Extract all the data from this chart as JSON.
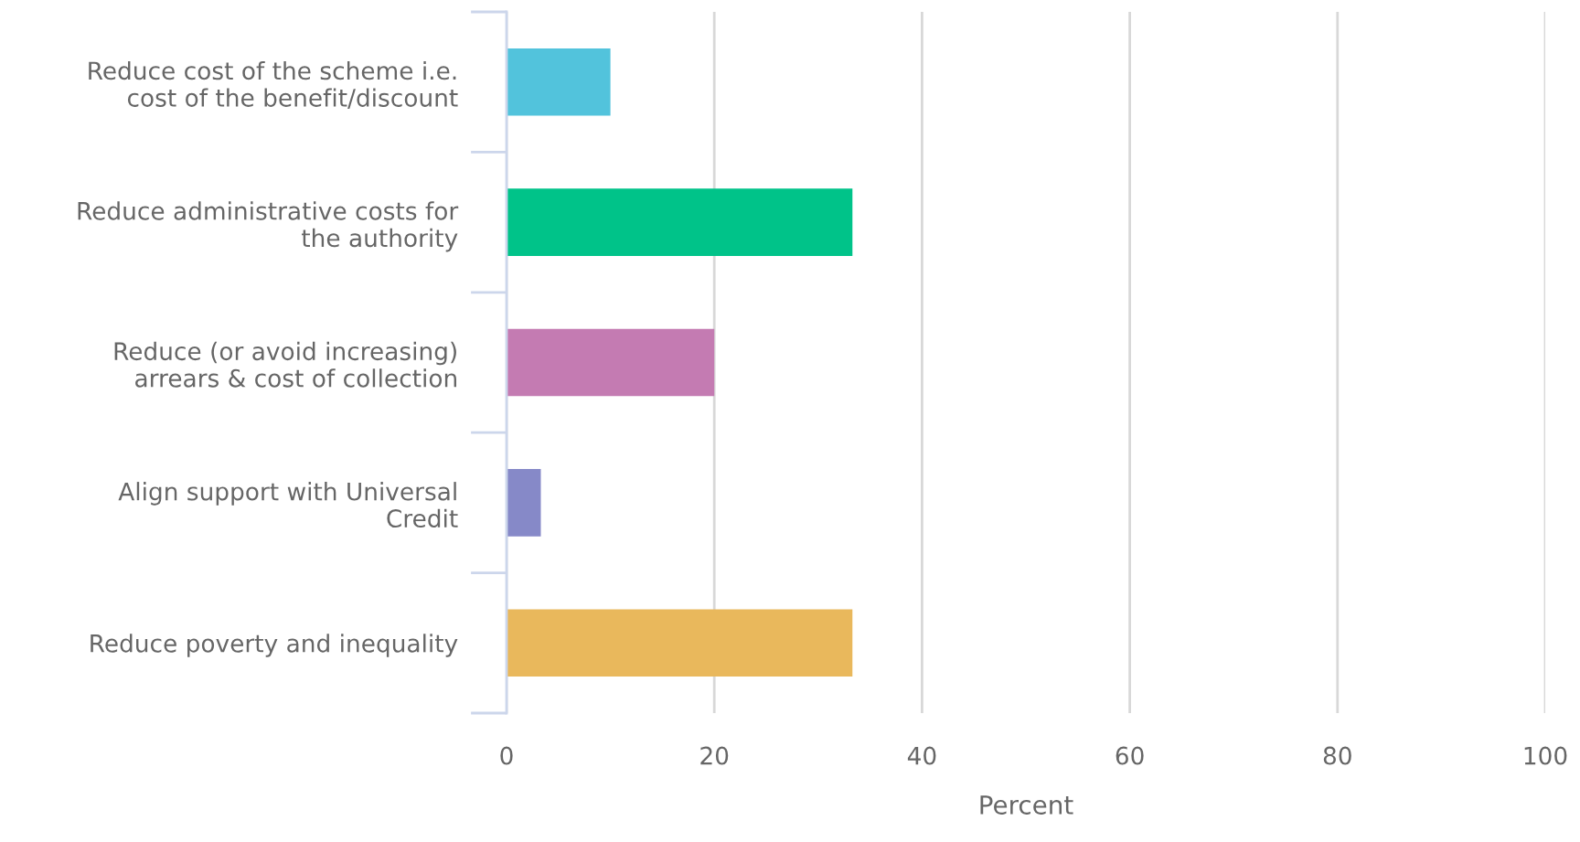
{
  "chart_data": {
    "type": "bar",
    "orientation": "horizontal",
    "xlabel": "Percent",
    "categories": [
      "Reduce cost of the scheme i.e.\ncost of the benefit/discount",
      "Reduce administrative costs for\nthe authority",
      "Reduce (or avoid increasing)\narrears & cost of collection",
      "Align support with Universal\nCredit",
      "Reduce poverty and inequality"
    ],
    "values": [
      10,
      33.3,
      20,
      3.3,
      33.3
    ],
    "colors": [
      "#52c3dc",
      "#00c389",
      "#c47bb2",
      "#8689c8",
      "#e9b85c"
    ],
    "xlim": [
      0,
      100
    ],
    "xticks": [
      0,
      20,
      40,
      60,
      80,
      100
    ],
    "grid": "x"
  }
}
